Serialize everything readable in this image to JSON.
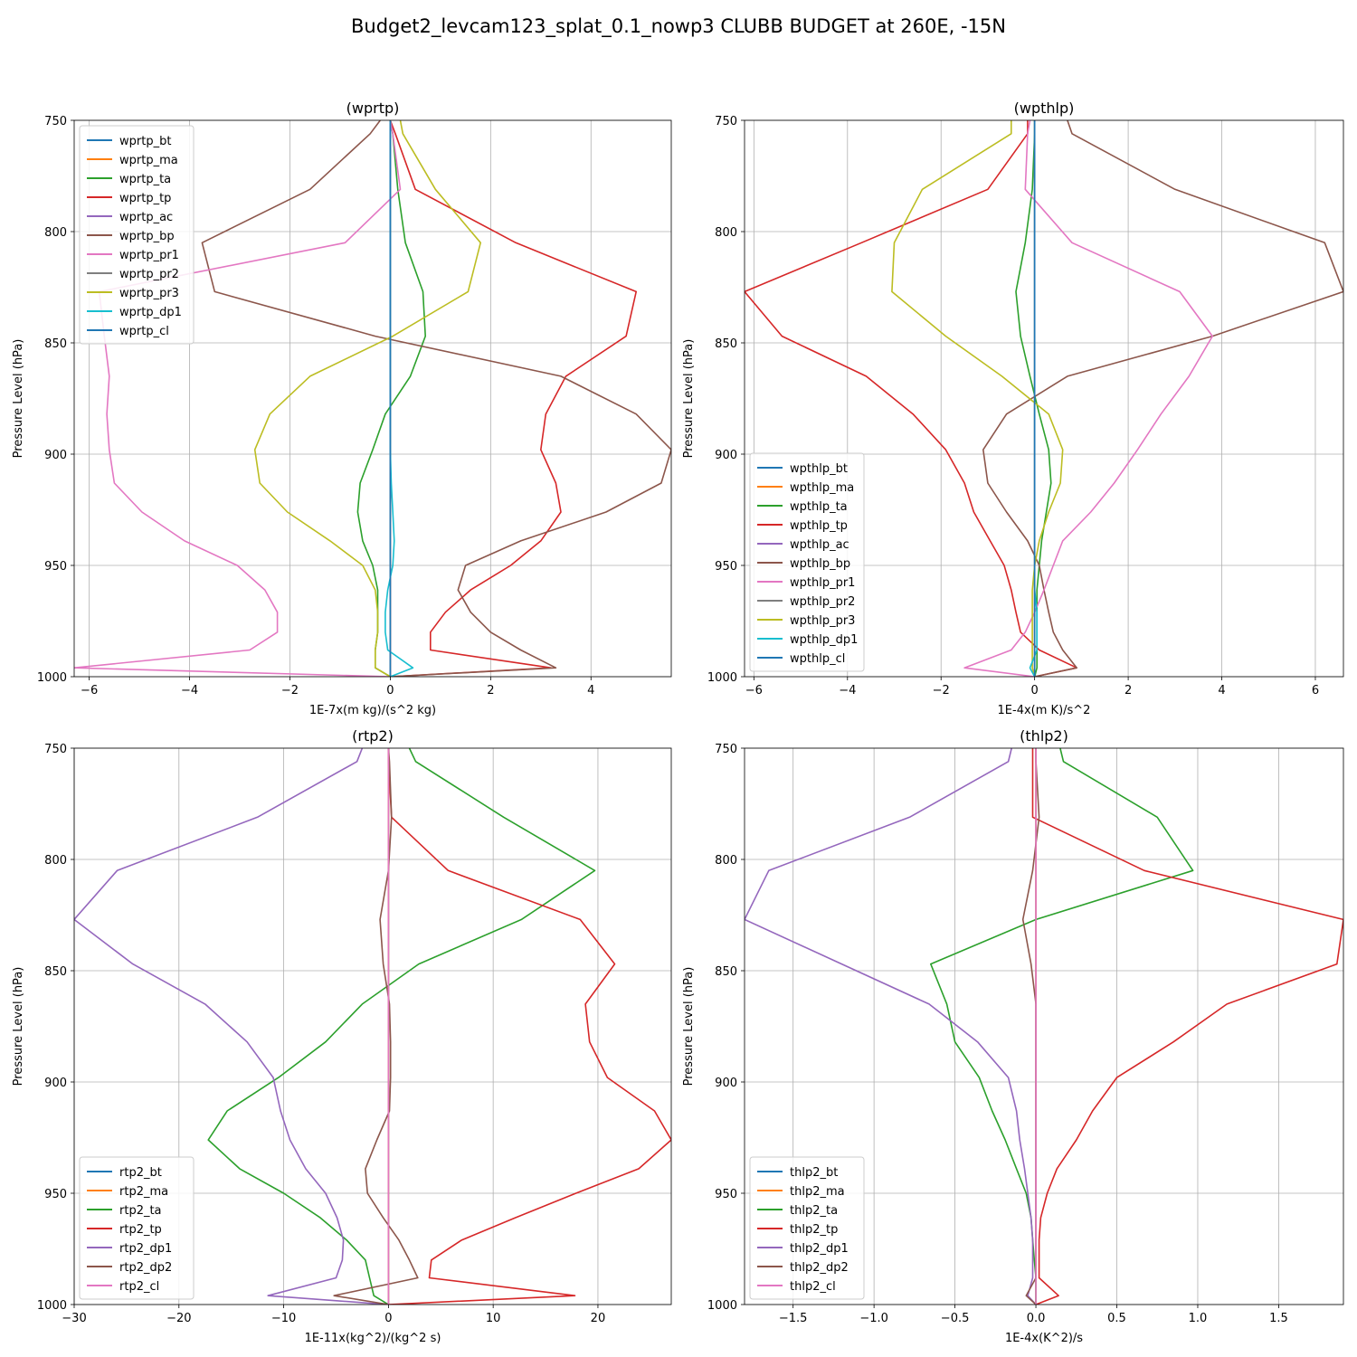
{
  "suptitle": "Budget2_levcam123_splat_0.1_nowp3 CLUBB BUDGET at 260E, -15N",
  "chart_data": [
    {
      "type": "line",
      "title": "(wprtp)",
      "xlabel": "1E-7x(m kg)/(s^2 kg)",
      "ylabel": "Pressure Level (hPa)",
      "xlim": [
        -6.3,
        5.6
      ],
      "ylim": [
        1000,
        750
      ],
      "xticks": [
        -6,
        -4,
        -2,
        0,
        2,
        4
      ],
      "yticks": [
        750,
        800,
        850,
        900,
        950,
        1000
      ],
      "grid": true,
      "legend_position": "upper-left",
      "levels": [
        750,
        756,
        781,
        805,
        827,
        847,
        865,
        882,
        898,
        913,
        926,
        939,
        950,
        961,
        971,
        980,
        988,
        996,
        1000
      ],
      "series": [
        {
          "name": "wprtp_bt",
          "color": "#1f77b4",
          "values": [
            0,
            0,
            0,
            0,
            0,
            0,
            0,
            0,
            0,
            0,
            0,
            0,
            0,
            0,
            0,
            0,
            0,
            0,
            0
          ]
        },
        {
          "name": "wprtp_ma",
          "color": "#ff7f0e",
          "values": [
            0,
            0,
            0,
            0,
            0,
            0,
            0,
            0,
            0,
            0,
            0,
            0,
            0,
            0,
            0,
            0,
            0,
            0,
            0
          ]
        },
        {
          "name": "wprtp_ta",
          "color": "#2ca02c",
          "values": [
            0,
            0.05,
            0.15,
            0.3,
            0.65,
            0.7,
            0.4,
            -0.1,
            -0.35,
            -0.6,
            -0.65,
            -0.55,
            -0.35,
            -0.25,
            -0.25,
            -0.25,
            -0.3,
            -0.3,
            0
          ]
        },
        {
          "name": "wprtp_tp",
          "color": "#d62728",
          "values": [
            0,
            0.1,
            0.5,
            2.5,
            4.9,
            4.7,
            3.5,
            3.1,
            3.0,
            3.3,
            3.4,
            3.0,
            2.4,
            1.6,
            1.1,
            0.8,
            0.8,
            3.2,
            0
          ]
        },
        {
          "name": "wprtp_ac",
          "color": "#9467bd",
          "values": [
            0,
            0,
            0,
            0,
            0,
            0,
            0,
            0,
            0,
            0,
            0,
            0,
            0,
            0,
            0,
            0,
            0,
            0,
            0
          ]
        },
        {
          "name": "wprtp_bp",
          "color": "#8c564b",
          "values": [
            -0.2,
            -0.4,
            -1.6,
            -3.75,
            -3.5,
            -0.3,
            3.4,
            4.9,
            5.6,
            5.4,
            4.3,
            2.6,
            1.5,
            1.35,
            1.6,
            2.0,
            2.6,
            3.3,
            0
          ]
        },
        {
          "name": "wprtp_pr1",
          "color": "#e377c2",
          "values": [
            0,
            0.05,
            0.2,
            -0.9,
            -5.8,
            -5.7,
            -5.6,
            -5.65,
            -5.6,
            -5.5,
            -4.95,
            -4.1,
            -3.05,
            -2.5,
            -2.25,
            -2.25,
            -2.8,
            -6.3,
            0
          ]
        },
        {
          "name": "wprtp_pr2",
          "color": "#7f7f7f",
          "values": [
            0,
            0,
            0,
            0,
            0,
            0,
            0,
            0,
            0,
            0,
            0,
            0,
            0,
            0,
            0,
            0,
            0,
            0,
            0
          ]
        },
        {
          "name": "wprtp_pr3",
          "color": "#bcbd22",
          "values": [
            0.2,
            0.25,
            0.9,
            1.8,
            1.55,
            0.05,
            -1.6,
            -2.4,
            -2.7,
            -2.6,
            -2.05,
            -1.2,
            -0.55,
            -0.3,
            -0.25,
            -0.25,
            -0.3,
            -0.3,
            0
          ]
        },
        {
          "name": "wprtp_dp1",
          "color": "#17becf",
          "values": [
            0,
            0,
            0,
            0,
            0,
            0,
            0,
            0,
            0,
            0.02,
            0.05,
            0.08,
            0.05,
            -0.05,
            -0.1,
            -0.1,
            -0.05,
            0.45,
            0
          ]
        },
        {
          "name": "wprtp_cl",
          "color": "#1f77b4",
          "values": [
            0,
            0,
            0,
            0,
            0,
            0,
            0,
            0,
            0,
            0,
            0,
            0,
            0,
            0,
            0,
            0,
            0,
            0,
            0
          ]
        }
      ]
    },
    {
      "type": "line",
      "title": "(wpthlp)",
      "xlabel": "1E-4x(m K)/s^2",
      "ylabel": "Pressure Level (hPa)",
      "xlim": [
        -6.2,
        6.6
      ],
      "ylim": [
        1000,
        750
      ],
      "xticks": [
        -6,
        -4,
        -2,
        0,
        2,
        4,
        6
      ],
      "yticks": [
        750,
        800,
        850,
        900,
        950,
        1000
      ],
      "grid": true,
      "legend_position": "lower-left",
      "levels": [
        750,
        756,
        781,
        805,
        827,
        847,
        865,
        882,
        898,
        913,
        926,
        939,
        950,
        961,
        971,
        980,
        988,
        996,
        1000
      ],
      "series": [
        {
          "name": "wpthlp_bt",
          "color": "#1f77b4",
          "values": [
            0,
            0,
            0,
            0,
            0,
            0,
            0,
            0,
            0,
            0,
            0,
            0,
            0,
            0,
            0,
            0,
            0,
            0,
            0
          ]
        },
        {
          "name": "wpthlp_ma",
          "color": "#ff7f0e",
          "values": [
            0,
            0,
            0,
            0,
            0,
            0,
            0,
            0,
            0,
            0,
            0,
            0,
            0,
            0,
            0,
            0,
            0,
            0,
            0
          ]
        },
        {
          "name": "wpthlp_ta",
          "color": "#2ca02c",
          "values": [
            0,
            0,
            -0.05,
            -0.2,
            -0.4,
            -0.3,
            -0.1,
            0.1,
            0.3,
            0.35,
            0.25,
            0.15,
            0.1,
            0.05,
            0.05,
            0.05,
            0.05,
            0.05,
            0
          ]
        },
        {
          "name": "wpthlp_tp",
          "color": "#d62728",
          "values": [
            -0.15,
            -0.15,
            -1.0,
            -3.7,
            -6.2,
            -5.4,
            -3.6,
            -2.6,
            -1.9,
            -1.5,
            -1.3,
            -0.95,
            -0.65,
            -0.5,
            -0.4,
            -0.3,
            0.1,
            0.9,
            0
          ]
        },
        {
          "name": "wpthlp_ac",
          "color": "#9467bd",
          "values": [
            0,
            0,
            0,
            0,
            0,
            0,
            0,
            0,
            0,
            0,
            0,
            0,
            0,
            0,
            0,
            0,
            0,
            0,
            0
          ]
        },
        {
          "name": "wpthlp_bp",
          "color": "#8c564b",
          "values": [
            0.7,
            0.8,
            3.0,
            6.2,
            6.6,
            3.8,
            0.7,
            -0.6,
            -1.1,
            -1.0,
            -0.6,
            -0.15,
            0.1,
            0.2,
            0.3,
            0.4,
            0.6,
            0.9,
            0
          ]
        },
        {
          "name": "wpthlp_pr1",
          "color": "#e377c2",
          "values": [
            -0.1,
            -0.15,
            -0.2,
            0.8,
            3.1,
            3.8,
            3.3,
            2.7,
            2.2,
            1.7,
            1.2,
            0.6,
            0.4,
            0.2,
            0,
            -0.2,
            -0.5,
            -1.5,
            0
          ]
        },
        {
          "name": "wpthlp_pr2",
          "color": "#7f7f7f",
          "values": [
            0,
            0,
            0,
            0,
            0,
            0,
            0,
            0,
            0,
            0,
            0,
            0,
            0,
            0,
            0,
            0,
            0,
            0,
            0
          ]
        },
        {
          "name": "wpthlp_pr3",
          "color": "#bcbd22",
          "values": [
            -0.5,
            -0.5,
            -2.4,
            -3.0,
            -3.05,
            -1.9,
            -0.7,
            0.3,
            0.6,
            0.55,
            0.3,
            0.1,
            0,
            -0.05,
            -0.05,
            -0.05,
            -0.05,
            -0.05,
            0
          ]
        },
        {
          "name": "wpthlp_dp1",
          "color": "#17becf",
          "values": [
            0,
            0,
            0,
            0,
            0,
            0,
            0,
            0,
            0,
            0,
            0,
            0,
            0,
            0,
            0.05,
            0.05,
            0.05,
            -0.1,
            0
          ]
        },
        {
          "name": "wpthlp_cl",
          "color": "#1f77b4",
          "values": [
            0,
            0,
            0,
            0,
            0,
            0,
            0,
            0,
            0,
            0,
            0,
            0,
            0,
            0,
            0,
            0,
            0,
            0,
            0
          ]
        }
      ]
    },
    {
      "type": "line",
      "title": "(rtp2)",
      "xlabel": "1E-11x(kg^2)/(kg^2 s)",
      "ylabel": "Pressure Level (hPa)",
      "xlim": [
        -30,
        27
      ],
      "ylim": [
        1000,
        750
      ],
      "xticks": [
        -30,
        -20,
        -10,
        0,
        10,
        20
      ],
      "yticks": [
        750,
        800,
        850,
        900,
        950,
        1000
      ],
      "grid": true,
      "legend_position": "lower-left",
      "levels": [
        750,
        756,
        781,
        805,
        827,
        847,
        865,
        882,
        898,
        913,
        926,
        939,
        950,
        961,
        971,
        980,
        988,
        996,
        1000
      ],
      "series": [
        {
          "name": "rtp2_bt",
          "color": "#1f77b4",
          "values": [
            0,
            0,
            0,
            0,
            0,
            0,
            0,
            0,
            0,
            0,
            0,
            0,
            0,
            0,
            0,
            0,
            0,
            0,
            0
          ]
        },
        {
          "name": "rtp2_ma",
          "color": "#ff7f0e",
          "values": [
            0,
            0,
            0,
            0,
            0,
            0,
            0,
            0,
            0,
            0,
            0,
            0,
            0,
            0,
            0,
            0,
            0,
            0,
            0
          ]
        },
        {
          "name": "rtp2_ta",
          "color": "#2ca02c",
          "values": [
            2.0,
            2.6,
            11,
            19.7,
            12.7,
            2.9,
            -2.5,
            -6.0,
            -10.5,
            -15.4,
            -17.2,
            -14.2,
            -10.0,
            -6.5,
            -4.0,
            -2.2,
            -1.8,
            -1.4,
            0
          ]
        },
        {
          "name": "rtp2_tp",
          "color": "#d62728",
          "values": [
            0,
            0,
            0.3,
            5.7,
            18.3,
            21.6,
            18.8,
            19.2,
            20.9,
            25.4,
            27.0,
            23.9,
            17.9,
            12.1,
            7.0,
            4.1,
            3.9,
            17.8,
            0
          ]
        },
        {
          "name": "rtp2_dp1",
          "color": "#9467bd",
          "values": [
            -2.5,
            -3.0,
            -12.5,
            -25.9,
            -30.0,
            -24.4,
            -17.5,
            -13.5,
            -11.0,
            -10.3,
            -9.4,
            -7.9,
            -6.0,
            -4.9,
            -4.3,
            -4.4,
            -5.0,
            -11.5,
            0
          ]
        },
        {
          "name": "rtp2_dp2",
          "color": "#8c564b",
          "values": [
            0,
            0.1,
            0.3,
            0,
            -0.8,
            -0.5,
            0.1,
            0.2,
            0.2,
            0.1,
            -1.1,
            -2.2,
            -2.0,
            -0.5,
            1.0,
            2.0,
            2.8,
            -5.2,
            0
          ]
        },
        {
          "name": "rtp2_cl",
          "color": "#e377c2",
          "values": [
            0,
            0,
            0,
            0,
            0,
            0,
            0,
            0,
            0,
            0,
            0,
            0,
            0,
            0,
            0,
            0,
            0,
            0,
            0
          ]
        }
      ]
    },
    {
      "type": "line",
      "title": "(thlp2)",
      "xlabel": "1E-4x(K^2)/s",
      "ylabel": "Pressure Level (hPa)",
      "xlim": [
        -1.8,
        1.9
      ],
      "ylim": [
        1000,
        750
      ],
      "xticks": [
        -1.5,
        -1.0,
        -0.5,
        0.0,
        0.5,
        1.0,
        1.5
      ],
      "ytick_labels_fixed": true,
      "yticks": [
        750,
        800,
        850,
        900,
        950,
        1000
      ],
      "grid": true,
      "legend_position": "lower-left",
      "levels": [
        750,
        756,
        781,
        805,
        827,
        847,
        865,
        882,
        898,
        913,
        926,
        939,
        950,
        961,
        971,
        980,
        988,
        996,
        1000
      ],
      "series": [
        {
          "name": "thlp2_bt",
          "color": "#1f77b4",
          "values": [
            0,
            0,
            0,
            0,
            0,
            0,
            0,
            0,
            0,
            0,
            0,
            0,
            0,
            0,
            0,
            0,
            0,
            0,
            0
          ]
        },
        {
          "name": "thlp2_ma",
          "color": "#ff7f0e",
          "values": [
            0,
            0,
            0,
            0,
            0,
            0,
            0,
            0,
            0,
            0,
            0,
            0,
            0,
            0,
            0,
            0,
            0,
            0,
            0
          ]
        },
        {
          "name": "thlp2_ta",
          "color": "#2ca02c",
          "values": [
            0.15,
            0.17,
            0.75,
            0.97,
            0.0,
            -0.65,
            -0.55,
            -0.5,
            -0.35,
            -0.27,
            -0.19,
            -0.12,
            -0.06,
            -0.03,
            -0.02,
            -0.01,
            0,
            0,
            0
          ]
        },
        {
          "name": "thlp2_tp",
          "color": "#d62728",
          "values": [
            -0.02,
            -0.02,
            -0.02,
            0.67,
            1.9,
            1.86,
            1.18,
            0.85,
            0.5,
            0.35,
            0.25,
            0.13,
            0.07,
            0.03,
            0.02,
            0.02,
            0.02,
            0.14,
            0
          ]
        },
        {
          "name": "thlp2_dp1",
          "color": "#9467bd",
          "values": [
            -0.15,
            -0.17,
            -0.78,
            -1.65,
            -1.8,
            -1.2,
            -0.66,
            -0.36,
            -0.17,
            -0.12,
            -0.1,
            -0.07,
            -0.05,
            -0.03,
            -0.02,
            -0.02,
            -0.02,
            -0.05,
            0
          ]
        },
        {
          "name": "thlp2_dp2",
          "color": "#8c564b",
          "values": [
            0,
            0,
            0.02,
            -0.02,
            -0.08,
            -0.03,
            0,
            0,
            0,
            0,
            0,
            0,
            0,
            0,
            0,
            0,
            0,
            -0.06,
            0
          ]
        },
        {
          "name": "thlp2_cl",
          "color": "#e377c2",
          "values": [
            0,
            0,
            0,
            0,
            0,
            0,
            0,
            0,
            0,
            0,
            0,
            0,
            0,
            0,
            0,
            0,
            0,
            0,
            0
          ]
        }
      ]
    }
  ]
}
